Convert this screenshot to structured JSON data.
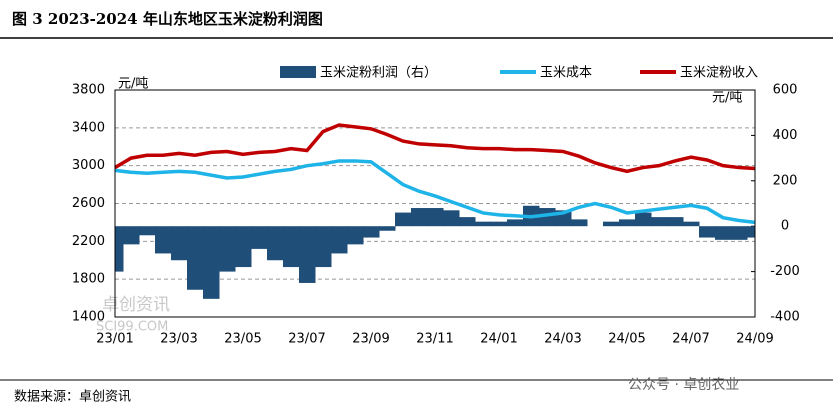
{
  "chart_data": {
    "type": "combo",
    "title": "图 3 2023-2024 年山东地区玉米淀粉利润图",
    "ylabel": "元/吨",
    "y2label": "元/吨",
    "source": "数据来源：卓创资讯",
    "watermark": "公众号 · 卓创农业",
    "brand": "卓创资讯",
    "brand_site": "SCI99.COM",
    "legend": "top",
    "categories": [
      "23/01",
      null,
      null,
      null,
      "23/03",
      null,
      null,
      null,
      "23/05",
      null,
      null,
      null,
      "23/07",
      null,
      null,
      null,
      "23/09",
      null,
      null,
      null,
      "23/11",
      null,
      null,
      null,
      "24/01",
      null,
      null,
      null,
      "24/03",
      null,
      null,
      null,
      "24/05",
      null,
      null,
      null,
      "24/07",
      null,
      null,
      null,
      "24/09"
    ],
    "ylim": [
      1400,
      3800
    ],
    "yticks": [
      1400,
      1800,
      2200,
      2600,
      3000,
      3400,
      3800
    ],
    "y2lim": [
      -400,
      600
    ],
    "y2ticks": [
      -400,
      -200,
      0,
      200,
      400,
      600
    ],
    "grid": true,
    "series": [
      {
        "name": "玉米淀粉利润（右）",
        "type": "bar",
        "axis": "y2",
        "color": "#1f4e79",
        "values": [
          -200,
          -80,
          -40,
          -120,
          -150,
          -280,
          -320,
          -200,
          -180,
          -100,
          -150,
          -180,
          -250,
          -180,
          -120,
          -80,
          -50,
          -20,
          60,
          80,
          80,
          70,
          40,
          20,
          20,
          30,
          90,
          80,
          70,
          30,
          0,
          20,
          30,
          60,
          40,
          40,
          20,
          -50,
          -60,
          -60,
          -50
        ]
      },
      {
        "name": "玉米成本",
        "type": "line",
        "color": "#1fb4e8",
        "values": [
          2950,
          2930,
          2920,
          2930,
          2940,
          2930,
          2900,
          2870,
          2880,
          2910,
          2940,
          2960,
          3000,
          3020,
          3050,
          3050,
          3040,
          2920,
          2800,
          2730,
          2680,
          2620,
          2560,
          2500,
          2480,
          2470,
          2460,
          2480,
          2500,
          2560,
          2600,
          2560,
          2500,
          2520,
          2540,
          2560,
          2580,
          2550,
          2450,
          2420,
          2400
        ]
      },
      {
        "name": "玉米淀粉收入",
        "type": "line",
        "color": "#c00000",
        "values": [
          2980,
          3080,
          3110,
          3110,
          3130,
          3110,
          3140,
          3150,
          3120,
          3140,
          3150,
          3180,
          3160,
          3360,
          3430,
          3410,
          3390,
          3330,
          3260,
          3230,
          3220,
          3210,
          3190,
          3180,
          3180,
          3170,
          3170,
          3160,
          3150,
          3100,
          3030,
          2980,
          2940,
          2980,
          3000,
          3050,
          3090,
          3060,
          3000,
          2980,
          2970
        ]
      }
    ]
  }
}
